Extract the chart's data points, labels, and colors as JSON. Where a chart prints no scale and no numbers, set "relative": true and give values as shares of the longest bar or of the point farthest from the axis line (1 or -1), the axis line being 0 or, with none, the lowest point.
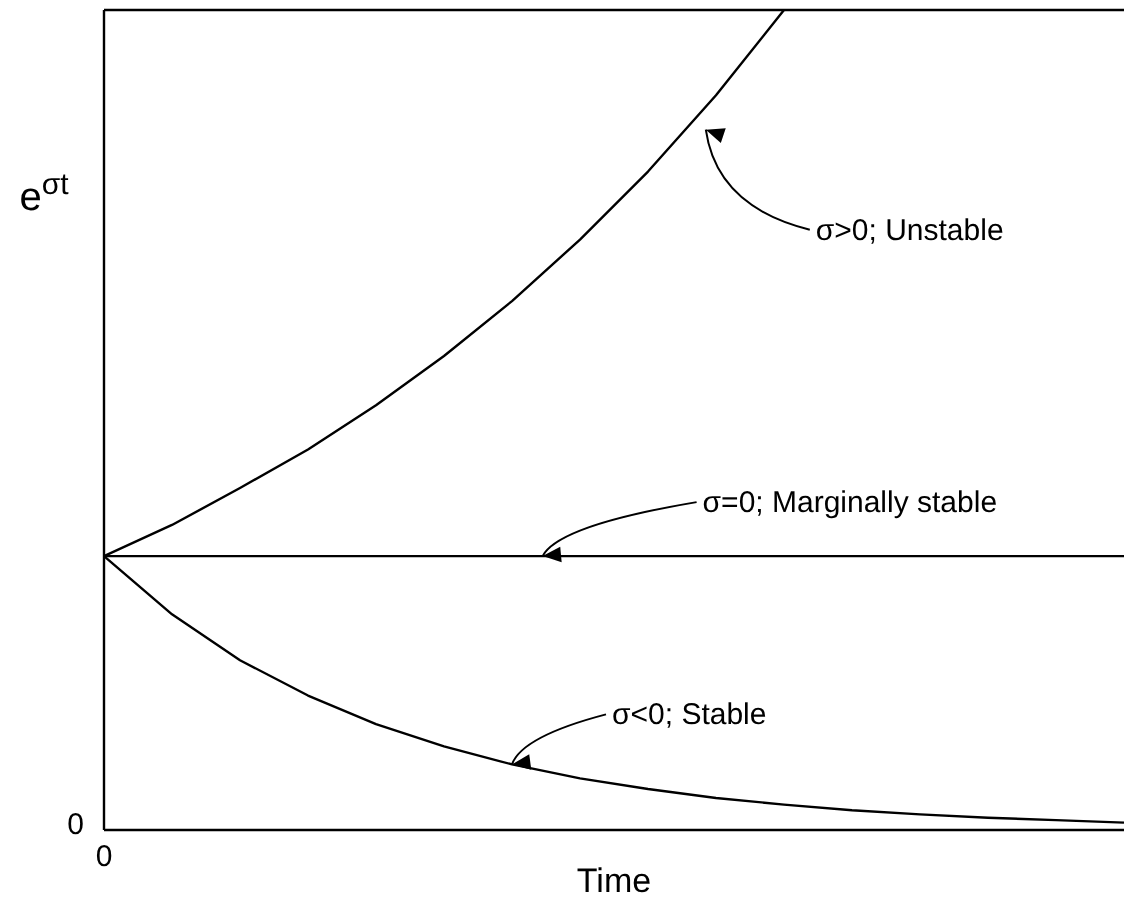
{
  "chart_data": {
    "type": "line",
    "relative": true,
    "xlabel": "Time",
    "ylabel": "e$^{σt}$",
    "marker": "none",
    "line_style": "solid",
    "categories": [
      null,
      null,
      null,
      null,
      null,
      null,
      null,
      null,
      null,
      null,
      null,
      null,
      null,
      null,
      null,
      null
    ],
    "series": [
      {
        "color": "#000000",
        "values": [
          0.334,
          0.372,
          0.417,
          0.464,
          0.518,
          0.578,
          0.645,
          0.72,
          0.803,
          0.896,
          1.0,
          null,
          null,
          null,
          null,
          null
        ]
      },
      {
        "color": "#000000",
        "values": [
          0.334,
          0.334,
          0.334,
          0.334,
          0.334,
          0.334,
          0.334,
          0.334,
          0.334,
          0.334,
          0.334,
          0.334,
          0.334,
          0.334,
          0.334,
          0.334
        ]
      },
      {
        "color": "#000000",
        "values": [
          0.334,
          0.263,
          0.207,
          0.164,
          0.129,
          0.102,
          0.08,
          0.063,
          0.05,
          0.039,
          0.031,
          0.024,
          0.019,
          0.015,
          0.012,
          0.009
        ]
      }
    ],
    "annotations": [
      "σ>0; Unstable",
      "σ=0; Marginally stable",
      "σ<0; Stable",
      "0",
      "0"
    ]
  }
}
